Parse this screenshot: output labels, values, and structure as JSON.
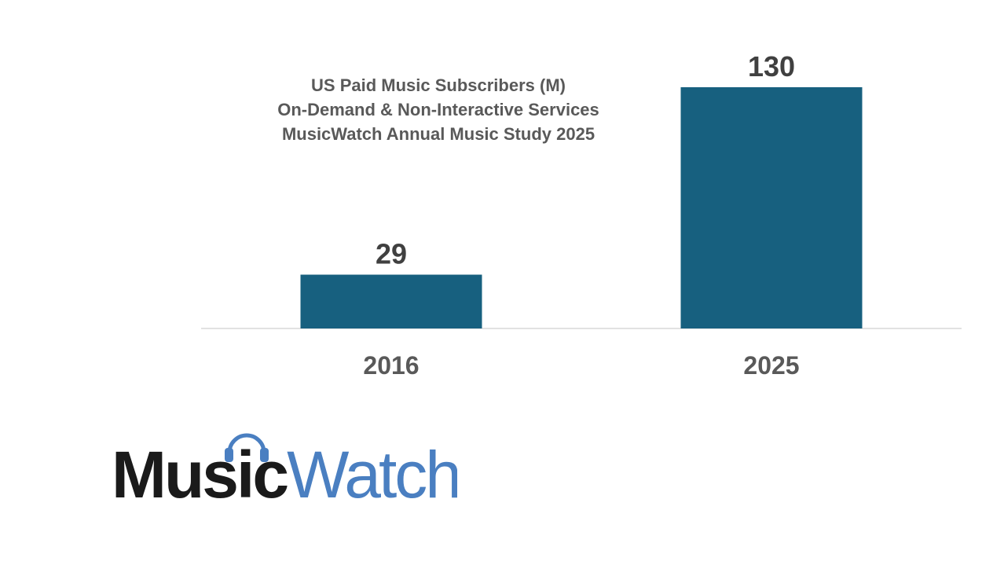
{
  "chart_data": {
    "type": "bar",
    "title": "US Paid Music Subscribers (M)\nOn-Demand & Non-Interactive Services\nMusicWatch Annual Music Study 2025",
    "title_lines": [
      "US Paid Music Subscribers (M)",
      "On-Demand & Non-Interactive Services",
      "MusicWatch Annual Music Study 2025"
    ],
    "categories": [
      "2016",
      "2025"
    ],
    "values": [
      29,
      130
    ],
    "data_labels": [
      "29",
      "130"
    ],
    "xlabel": "",
    "ylabel": "",
    "ylim": [
      0,
      130
    ],
    "grid": false,
    "legend": "none",
    "bar_color": "#17607f",
    "axis_color": "#d9d9d9",
    "label_color": "#404040",
    "tick_color": "#595959"
  },
  "logo": {
    "text_dark": "Music",
    "text_light": "Watch",
    "dark_color": "#1a1a1a",
    "light_color": "#4a7fc1",
    "icon": "headphones-icon"
  }
}
